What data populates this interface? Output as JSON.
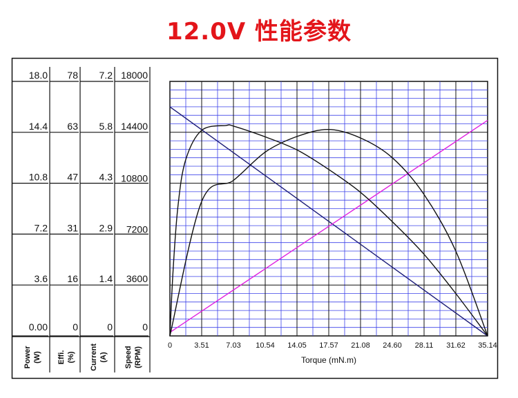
{
  "title": "12.0V 性能参数",
  "chart_data": {
    "type": "line",
    "title": "12.0V 性能参数",
    "xlabel": "Torque (mN.m)",
    "x_ticks": [
      "0",
      "3.51",
      "7.03",
      "10.54",
      "14.05",
      "17.57",
      "21.08",
      "24.60",
      "28.11",
      "31.62",
      "35.14"
    ],
    "xlim": [
      0,
      35.14
    ],
    "grid": true,
    "scales": [
      {
        "name": "power",
        "label": "Power (W)",
        "ticks": [
          "18.0",
          "14.4",
          "10.8",
          "7.2",
          "3.6",
          "0.00"
        ],
        "range": [
          0,
          18
        ]
      },
      {
        "name": "efficiency",
        "label": "Effi. (%)",
        "ticks": [
          "78",
          "63",
          "47",
          "31",
          "16",
          "0"
        ],
        "range": [
          0,
          78
        ]
      },
      {
        "name": "current",
        "label": "Current (A)",
        "ticks": [
          "7.2",
          "5.8",
          "4.3",
          "2.9",
          "1.4",
          "0"
        ],
        "range": [
          0,
          7.2
        ]
      },
      {
        "name": "speed",
        "label": "Speed (RPM)",
        "ticks": [
          "18000",
          "14400",
          "10800",
          "7200",
          "3600",
          "0"
        ],
        "range": [
          0,
          18000
        ]
      }
    ],
    "series": [
      {
        "scale": "speed",
        "color": "#1c1c78",
        "x": [
          0,
          35.14
        ],
        "y": [
          16200,
          0
        ]
      },
      {
        "scale": "current",
        "color": "#e020e0",
        "x": [
          0,
          35.14
        ],
        "y": [
          0.1,
          6.1
        ]
      },
      {
        "scale": "power",
        "color": "#111111",
        "x": [
          0,
          3.51,
          7.03,
          10.54,
          14.05,
          17.57,
          21.08,
          24.6,
          28.11,
          31.62,
          35.14
        ],
        "y": [
          0,
          9.5,
          11.0,
          13.0,
          14.1,
          14.6,
          14.0,
          12.6,
          10.0,
          6.0,
          0
        ]
      },
      {
        "scale": "efficiency",
        "color": "#111111",
        "x": [
          0,
          0.35,
          0.9,
          1.75,
          3.51,
          6.2,
          7.03,
          10.54,
          14.05,
          17.57,
          21.08,
          24.6,
          28.11,
          31.62,
          35.14
        ],
        "y": [
          0,
          20,
          40,
          54,
          63,
          64.5,
          64.3,
          61,
          57,
          51,
          44,
          35,
          25,
          13,
          0
        ]
      }
    ]
  }
}
